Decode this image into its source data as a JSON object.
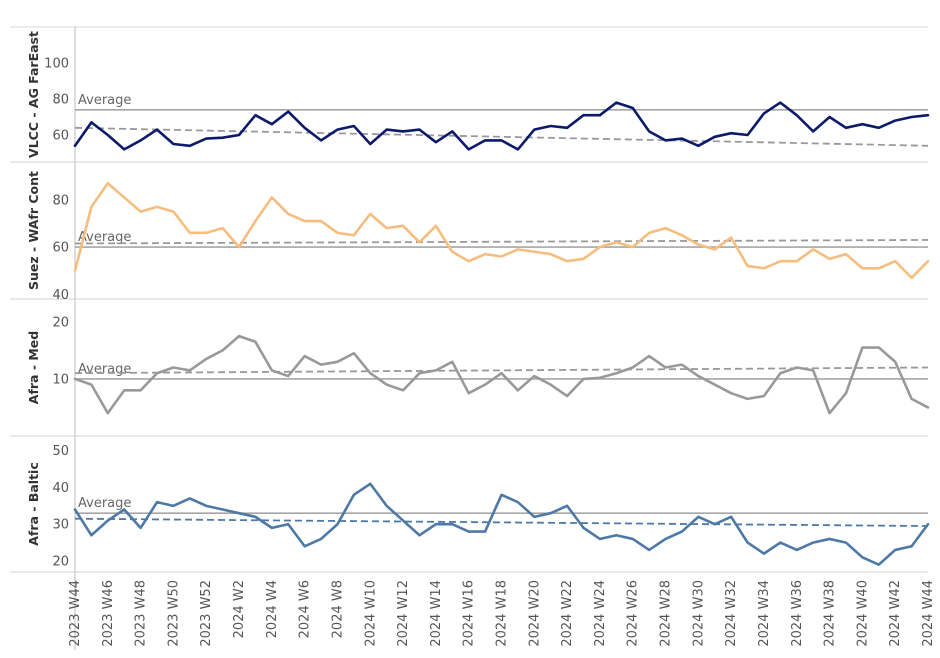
{
  "chart_data": {
    "type": "line",
    "x": [
      "2023 W44",
      "2023 W45",
      "2023 W46",
      "2023 W47",
      "2023 W48",
      "2023 W49",
      "2023 W50",
      "2023 W51",
      "2023 W52",
      "2024 W1",
      "2024 W2",
      "2024 W3",
      "2024 W4",
      "2024 W5",
      "2024 W6",
      "2024 W7",
      "2024 W8",
      "2024 W9",
      "2024 W10",
      "2024 W11",
      "2024 W12",
      "2024 W13",
      "2024 W14",
      "2024 W15",
      "2024 W16",
      "2024 W17",
      "2024 W18",
      "2024 W19",
      "2024 W20",
      "2024 W21",
      "2024 W22",
      "2024 W23",
      "2024 W24",
      "2024 W25",
      "2024 W26",
      "2024 W27",
      "2024 W28",
      "2024 W29",
      "2024 W30",
      "2024 W31",
      "2024 W32",
      "2024 W33",
      "2024 W34",
      "2024 W35",
      "2024 W36",
      "2024 W37",
      "2024 W38",
      "2024 W39",
      "2024 W40",
      "2024 W41",
      "2024 W42",
      "2024 W43",
      "2024 W44"
    ],
    "x_tick_labels": [
      "2023 W44",
      "2023 W46",
      "2023 W48",
      "2023 W50",
      "2023 W52",
      "2024 W2",
      "2024 W4",
      "2024 W6",
      "2024 W8",
      "2024 W10",
      "2024 W12",
      "2024 W14",
      "2024 W16",
      "2024 W18",
      "2024 W20",
      "2024 W22",
      "2024 W24",
      "2024 W26",
      "2024 W28",
      "2024 W30",
      "2024 W32",
      "2024 W34",
      "2024 W36",
      "2024 W38",
      "2024 W40",
      "2024 W42",
      "2024 W44"
    ],
    "average_label": "Average",
    "grid": false,
    "panels": [
      {
        "ylabel": "VLCC - AG FarEast",
        "color": "#0d1a6b",
        "ylim": [
          45,
          120
        ],
        "yticks": [
          60,
          80,
          100
        ],
        "average": 74,
        "trend": [
          64,
          54
        ],
        "trend_color": "#999999",
        "values": [
          54,
          67,
          60,
          52,
          57,
          63,
          55,
          54,
          58,
          58.5,
          60,
          71,
          66,
          73,
          64,
          57,
          63,
          65,
          55,
          63,
          62,
          63,
          56,
          62,
          52,
          57,
          57,
          52,
          63,
          65,
          64,
          71,
          71,
          78,
          75,
          62,
          57,
          58,
          54,
          59,
          61,
          60,
          72,
          78,
          71,
          62,
          70,
          64,
          66,
          64,
          68,
          70,
          71
        ]
      },
      {
        "ylabel": "Suez - WAfr Cont",
        "color": "#f7bd7e",
        "ylim": [
          38,
          96
        ],
        "yticks": [
          40,
          60,
          80
        ],
        "average": 60,
        "trend": [
          61.5,
          63
        ],
        "trend_color": "#999999",
        "values": [
          50,
          77,
          87,
          81,
          75,
          77,
          75,
          66,
          66,
          68,
          60,
          71,
          81,
          74,
          71,
          71,
          66,
          65,
          74,
          68,
          69,
          62,
          69,
          58,
          54,
          57,
          56,
          59,
          58,
          57,
          54,
          55,
          60,
          62,
          60,
          66,
          68,
          65,
          61,
          59,
          64,
          52,
          51,
          54,
          54,
          59,
          55,
          57,
          51,
          51,
          54,
          47,
          54
        ]
      },
      {
        "ylabel": "Afra - Med",
        "color": "#999999",
        "ylim": [
          0,
          24
        ],
        "yticks": [
          10,
          20
        ],
        "average": 10,
        "trend": [
          11,
          12
        ],
        "trend_color": "#999999",
        "values": [
          10,
          9,
          4,
          8,
          8,
          11,
          12,
          11.5,
          13.5,
          15,
          17.5,
          16.5,
          11.5,
          10.5,
          14,
          12.5,
          13,
          14.5,
          11,
          9,
          8,
          11,
          11.5,
          13,
          7.5,
          9,
          11,
          8,
          10.5,
          9,
          7,
          10,
          10.2,
          11,
          12,
          14,
          12,
          12.5,
          10.5,
          9,
          7.5,
          6.5,
          7,
          11,
          12,
          11.5,
          4,
          7.5,
          15.5,
          15.5,
          13,
          6.5,
          5
        ]
      },
      {
        "ylabel": "Afra - Baltic",
        "color": "#4e79a7",
        "ylim": [
          17,
          54
        ],
        "yticks": [
          20,
          30,
          40,
          50
        ],
        "average": 33,
        "trend": [
          31.5,
          29.5
        ],
        "trend_color": "#4e79a7",
        "values": [
          34,
          27,
          31,
          34,
          29,
          36,
          35,
          37,
          35,
          34,
          33,
          32,
          29,
          30,
          24,
          26,
          30,
          38,
          41,
          35,
          31,
          27,
          30,
          30,
          28,
          28,
          38,
          36,
          32,
          33,
          35,
          29,
          26,
          27,
          26,
          23,
          26,
          28,
          32,
          30,
          32,
          25,
          22,
          25,
          23,
          25,
          26,
          25,
          21,
          19,
          23,
          24,
          30
        ]
      }
    ]
  }
}
